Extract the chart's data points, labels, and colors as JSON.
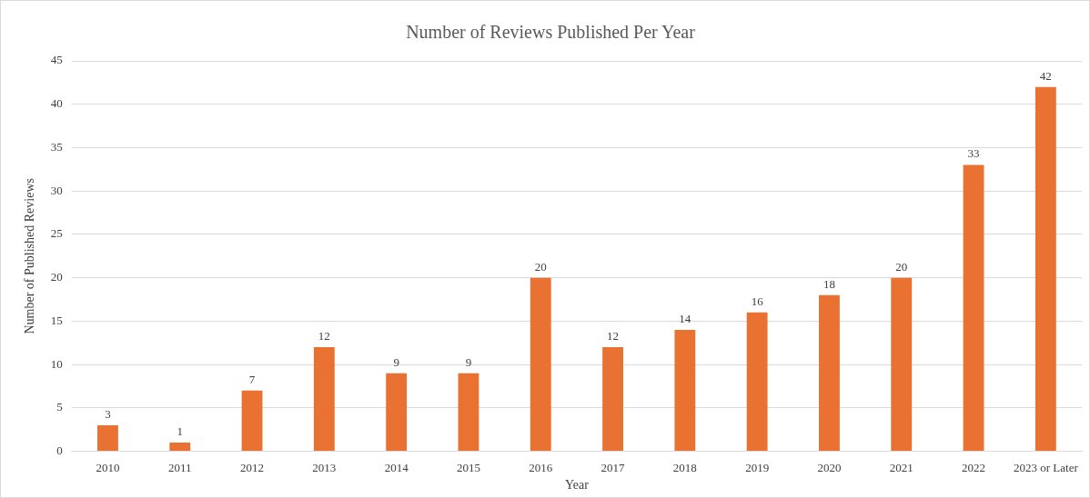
{
  "chart_data": {
    "type": "bar",
    "title": "Number of Reviews Published Per Year",
    "xlabel": "Year",
    "ylabel": "Number of Published Reviews",
    "categories": [
      "2010",
      "2011",
      "2012",
      "2013",
      "2014",
      "2015",
      "2016",
      "2017",
      "2018",
      "2019",
      "2020",
      "2021",
      "2022",
      "2023 or Later"
    ],
    "values": [
      3,
      1,
      7,
      12,
      9,
      9,
      20,
      12,
      14,
      16,
      18,
      20,
      33,
      42
    ],
    "color": "#e97132",
    "ylim": [
      0,
      45
    ],
    "yticks": [
      0,
      5,
      10,
      15,
      20,
      25,
      30,
      35,
      40,
      45
    ],
    "grid": "y",
    "data_labels": true
  }
}
